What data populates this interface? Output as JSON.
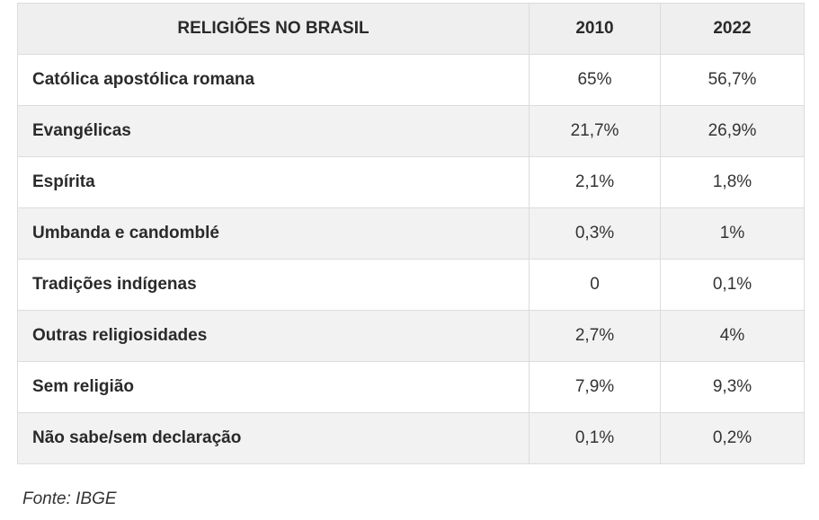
{
  "table": {
    "headers": [
      "RELIGIÕES NO BRASIL",
      "2010",
      "2022"
    ],
    "rows": [
      {
        "label": "Católica apostólica romana",
        "y2010": "65%",
        "y2022": "56,7%"
      },
      {
        "label": "Evangélicas",
        "y2010": "21,7%",
        "y2022": "26,9%"
      },
      {
        "label": "Espírita",
        "y2010": "2,1%",
        "y2022": "1,8%"
      },
      {
        "label": "Umbanda e candomblé",
        "y2010": "0,3%",
        "y2022": "1%"
      },
      {
        "label": "Tradições indígenas",
        "y2010": "0",
        "y2022": "0,1%"
      },
      {
        "label": "Outras religiosidades",
        "y2010": "2,7%",
        "y2022": "4%"
      },
      {
        "label": "Sem religião",
        "y2010": "7,9%",
        "y2022": "9,3%"
      },
      {
        "label": "Não sabe/sem declaração",
        "y2010": "0,1%",
        "y2022": "0,2%"
      }
    ]
  },
  "source": "Fonte: IBGE"
}
